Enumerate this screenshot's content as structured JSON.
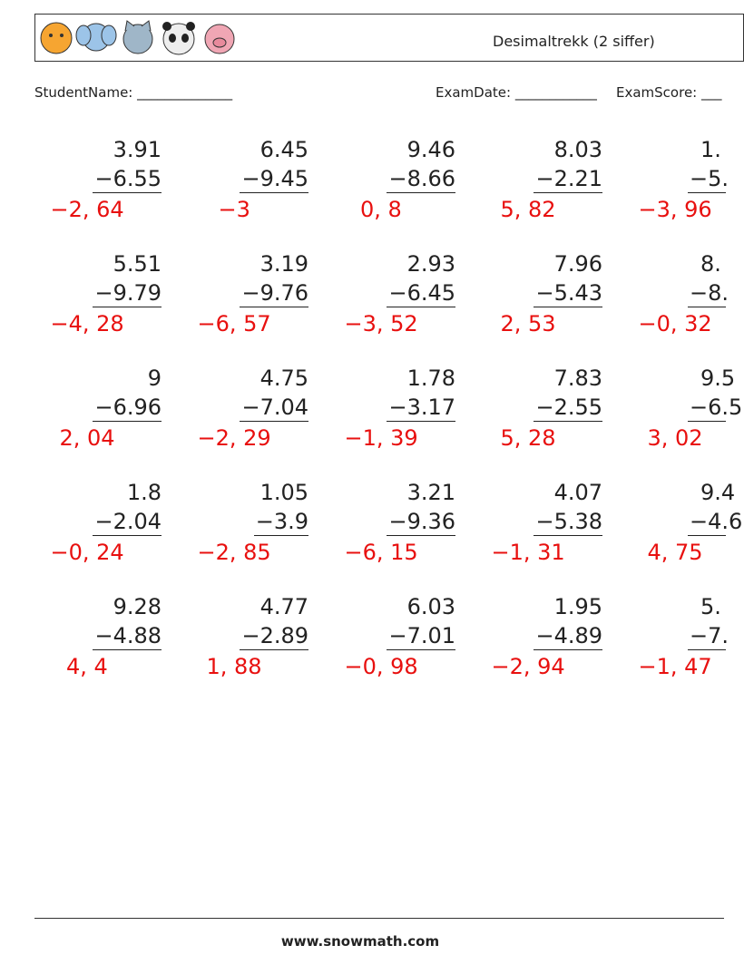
{
  "header": {
    "title": "Desimaltrekk (2 siffer)"
  },
  "fields": {
    "student": "StudentName: ______________",
    "date": "ExamDate: ____________",
    "score": "ExamScore: ___"
  },
  "problems": [
    [
      {
        "top": "3.91",
        "bottom": "−6.55",
        "answer": "−2, 64"
      },
      {
        "top": "6.45",
        "bottom": "−9.45",
        "answer": "−3"
      },
      {
        "top": "9.46",
        "bottom": "−8.66",
        "answer": "0, 8"
      },
      {
        "top": "8.03",
        "bottom": "−2.21",
        "answer": "5, 82"
      },
      {
        "top": "1.",
        "bottom": "−5.",
        "answer": "−3, 96"
      }
    ],
    [
      {
        "top": "5.51",
        "bottom": "−9.79",
        "answer": "−4, 28"
      },
      {
        "top": "3.19",
        "bottom": "−9.76",
        "answer": "−6, 57"
      },
      {
        "top": "2.93",
        "bottom": "−6.45",
        "answer": "−3, 52"
      },
      {
        "top": "7.96",
        "bottom": "−5.43",
        "answer": "2, 53"
      },
      {
        "top": "8.",
        "bottom": "−8.",
        "answer": "−0, 32"
      }
    ],
    [
      {
        "top": "9",
        "bottom": "−6.96",
        "answer": "2, 04"
      },
      {
        "top": "4.75",
        "bottom": "−7.04",
        "answer": "−2, 29"
      },
      {
        "top": "1.78",
        "bottom": "−3.17",
        "answer": "−1, 39"
      },
      {
        "top": "7.83",
        "bottom": "−2.55",
        "answer": "5, 28"
      },
      {
        "top": "9.5",
        "bottom": "−6.5",
        "answer": "3, 02"
      }
    ],
    [
      {
        "top": "1.8",
        "bottom": "−2.04",
        "answer": "−0, 24"
      },
      {
        "top": "1.05",
        "bottom": "−3.9",
        "answer": "−2, 85"
      },
      {
        "top": "3.21",
        "bottom": "−9.36",
        "answer": "−6, 15"
      },
      {
        "top": "4.07",
        "bottom": "−5.38",
        "answer": "−1, 31"
      },
      {
        "top": "9.4",
        "bottom": "−4.6",
        "answer": "4, 75"
      }
    ],
    [
      {
        "top": "9.28",
        "bottom": "−4.88",
        "answer": "4, 4"
      },
      {
        "top": "4.77",
        "bottom": "−2.89",
        "answer": "1, 88"
      },
      {
        "top": "6.03",
        "bottom": "−7.01",
        "answer": "−0, 98"
      },
      {
        "top": "1.95",
        "bottom": "−4.89",
        "answer": "−2, 94"
      },
      {
        "top": "5.",
        "bottom": "−7.",
        "answer": "−1, 47"
      }
    ]
  ],
  "footer": {
    "url": "www.snowmath.com"
  }
}
